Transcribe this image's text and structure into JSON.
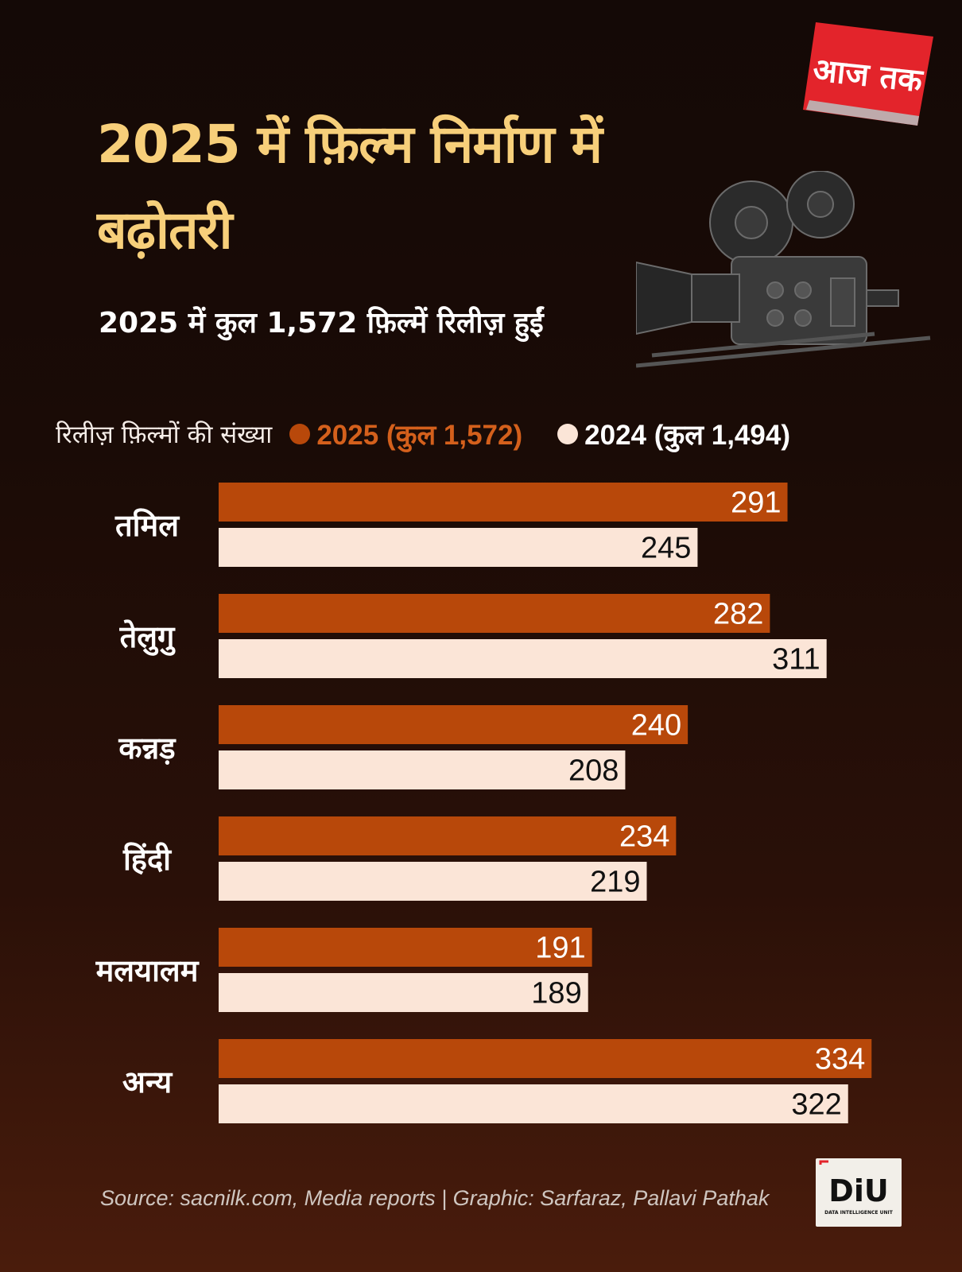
{
  "title": "2025 में फ़िल्म निर्माण में बढ़ोतरी",
  "subtitle": "2025 में कुल 1,572 फ़िल्में रिलीज़ हुईं",
  "brand": {
    "logo_text": "आज तक",
    "unit_text": "DiU",
    "unit_subtext": "DATA INTELLIGENCE UNIT"
  },
  "source": "Source: sacnilk.com, Media reports | Graphic:  Sarfaraz, Pallavi Pathak",
  "colors": {
    "bg": "#1a0b06",
    "accent_title": "#f7cf7a",
    "series_2025": "#b8480a",
    "series_2024": "#fbe5d7",
    "brand_red": "#e3242b"
  },
  "icons": [
    "film-camera-icon",
    "aajtak-logo",
    "diu-logo"
  ],
  "chart_data": {
    "type": "bar",
    "orientation": "horizontal",
    "legend_title": "रिलीज़ फ़िल्मों की संख्या",
    "legend_position": "top",
    "categories": [
      "तमिल",
      "तेलुगु",
      "कन्नड़",
      "हिंदी",
      "मलयालम",
      "अन्य"
    ],
    "series": [
      {
        "name": "2025 (कुल 1,572)",
        "values": [
          291,
          282,
          240,
          234,
          191,
          334
        ],
        "color": "#b8480a",
        "label_color": "#ffffff"
      },
      {
        "name": "2024 (कुल 1,494)",
        "values": [
          245,
          311,
          208,
          219,
          189,
          322
        ],
        "color": "#fbe5d7",
        "label_color": "#111111"
      }
    ],
    "xlim": [
      0,
      340
    ],
    "grid": false
  }
}
